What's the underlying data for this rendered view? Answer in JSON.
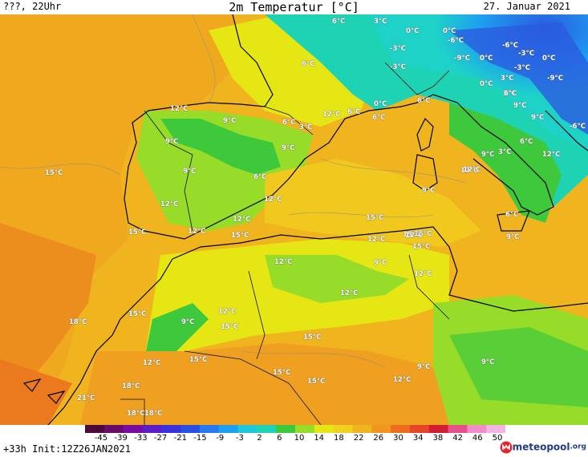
{
  "header": {
    "left": "???, 22Uhr",
    "title": "2m Temperatur [°C]",
    "date": "27. Januar 2021"
  },
  "footer": {
    "left": "+33h Init:12Z26JAN2021",
    "brand": "meteopool",
    "brand_tld": ".org"
  },
  "colors": {
    "ocean_warm": "#f09a1e",
    "land_cool_green": "#3ec83c",
    "cold_blue": "#2a5be0",
    "cyan": "#1ed2c8",
    "yellow": "#e6e614",
    "orange": "#f0a020"
  },
  "scale": {
    "labels": [
      "-45",
      "-39",
      "-33",
      "-27",
      "-21",
      "-15",
      "-9",
      "-3",
      "2",
      "6",
      "10",
      "14",
      "18",
      "22",
      "26",
      "30",
      "34",
      "38",
      "42",
      "46",
      "50"
    ],
    "colors": [
      "#4b0a3a",
      "#6a0a6a",
      "#7a0aa0",
      "#5a1ec8",
      "#3c32dc",
      "#2850e6",
      "#2878f0",
      "#1ea0f0",
      "#1ec8dc",
      "#1ed2b4",
      "#3ec83c",
      "#96dc28",
      "#e6e614",
      "#f0d21e",
      "#f0b41e",
      "#f0961e",
      "#eb6e1e",
      "#e64628",
      "#d21e32",
      "#e6508c",
      "#f08cc8",
      "#f5b4e6"
    ]
  },
  "temp_labels": [
    {
      "t": "6°C"
    },
    {
      "t": "3°C"
    },
    {
      "t": "0°C"
    },
    {
      "t": "0°C"
    },
    {
      "t": "-6°C"
    },
    {
      "t": "-6°C"
    },
    {
      "t": "-3°C"
    },
    {
      "t": "-3°C"
    },
    {
      "t": "-9°C"
    },
    {
      "t": "0°C"
    },
    {
      "t": "0°C"
    },
    {
      "t": "-3°C"
    },
    {
      "t": "6°C"
    },
    {
      "t": "3°C"
    },
    {
      "t": "-9°C"
    },
    {
      "t": "0°C"
    },
    {
      "t": "3°C"
    },
    {
      "t": "6°C"
    },
    {
      "t": "-3°C"
    },
    {
      "t": "12°C"
    },
    {
      "t": "0°C"
    },
    {
      "t": "6°C"
    },
    {
      "t": "6°C"
    },
    {
      "t": "9°C"
    },
    {
      "t": "-6°C"
    },
    {
      "t": "12°C"
    },
    {
      "t": "9°C"
    },
    {
      "t": "6°C"
    },
    {
      "t": "3°C"
    },
    {
      "t": "9°C"
    },
    {
      "t": "6°C"
    },
    {
      "t": "9°C"
    },
    {
      "t": "3°C"
    },
    {
      "t": "9°C"
    },
    {
      "t": "15°C"
    },
    {
      "t": "9°C"
    },
    {
      "t": "6°C"
    },
    {
      "t": "12°C"
    },
    {
      "t": "12°C"
    },
    {
      "t": "12°C"
    },
    {
      "t": "9°C"
    },
    {
      "t": "6°C"
    },
    {
      "t": "15°C"
    },
    {
      "t": "12°C"
    },
    {
      "t": "15°C"
    },
    {
      "t": "15°C"
    },
    {
      "t": "6°C"
    },
    {
      "t": "9°C"
    },
    {
      "t": "12°C"
    },
    {
      "t": "12°C"
    },
    {
      "t": "15°C"
    },
    {
      "t": "15°C"
    },
    {
      "t": "9°C"
    },
    {
      "t": "12°C"
    },
    {
      "t": "12°C"
    },
    {
      "t": "12°C"
    },
    {
      "t": "9°C"
    },
    {
      "t": "12°C"
    },
    {
      "t": "15°C"
    },
    {
      "t": "18°C"
    },
    {
      "t": "9°C"
    },
    {
      "t": "12°C"
    },
    {
      "t": "12°C"
    },
    {
      "t": "15°C"
    },
    {
      "t": "15°C"
    },
    {
      "t": "12°C"
    },
    {
      "t": "15°C"
    },
    {
      "t": "15°C"
    },
    {
      "t": "12°C"
    },
    {
      "t": "9°C"
    },
    {
      "t": "9°C"
    },
    {
      "t": "15°C"
    },
    {
      "t": "18°C"
    },
    {
      "t": "15°C"
    },
    {
      "t": "12°C"
    },
    {
      "t": "21°C"
    },
    {
      "t": "18°C"
    },
    {
      "t": "18°C"
    }
  ]
}
